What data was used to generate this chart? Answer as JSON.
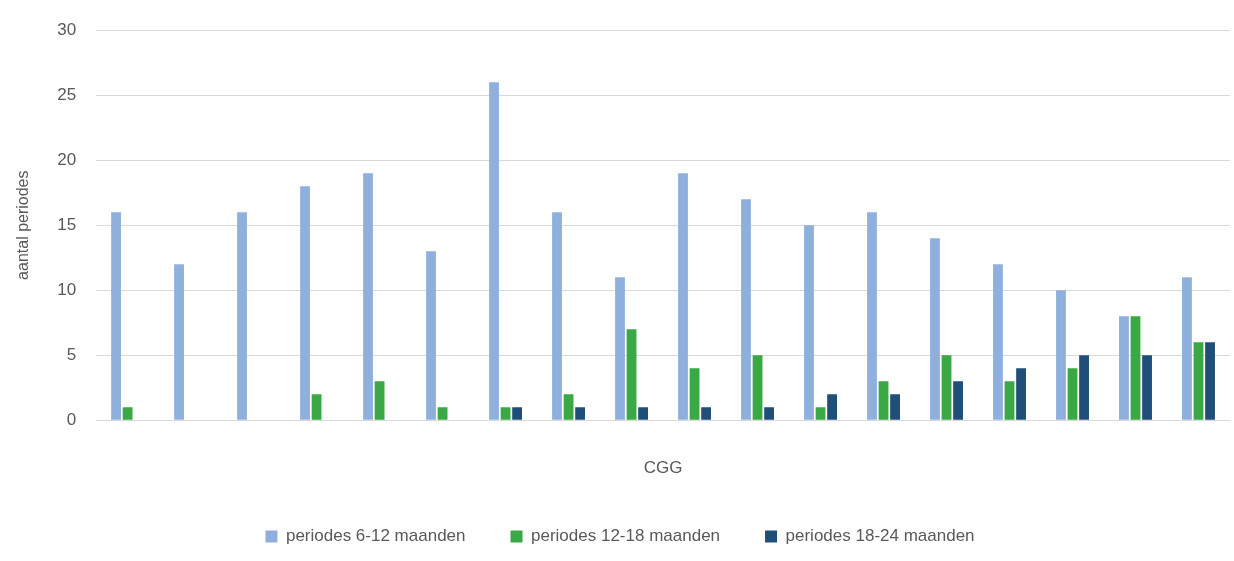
{
  "chart_data": {
    "type": "bar",
    "xlabel": "CGG",
    "ylabel": "aantal periodes",
    "categories": [
      null,
      null,
      null,
      null,
      null,
      null,
      null,
      null,
      null,
      null,
      null,
      null,
      null,
      null,
      null,
      null,
      null,
      null
    ],
    "series": [
      {
        "name": "periodes 6-12 maanden",
        "color": "#8fb0dc",
        "values": [
          16,
          12,
          16,
          18,
          19,
          13,
          26,
          16,
          11,
          19,
          17,
          15,
          16,
          14,
          12,
          10,
          8,
          11
        ]
      },
      {
        "name": "periodes 12-18 maanden",
        "color": "#3aa845",
        "values": [
          1,
          0,
          0,
          2,
          3,
          1,
          1,
          2,
          7,
          4,
          5,
          1,
          3,
          5,
          3,
          4,
          8,
          6
        ]
      },
      {
        "name": "periodes 18-24 maanden",
        "color": "#1f4e79",
        "values": [
          0,
          0,
          0,
          0,
          0,
          0,
          1,
          1,
          1,
          1,
          1,
          2,
          2,
          3,
          4,
          5,
          5,
          6
        ]
      }
    ],
    "ylim": [
      0,
      30
    ],
    "yticks": [
      0,
      5,
      10,
      15,
      20,
      25,
      30
    ],
    "grid": "y",
    "legend": "bottom"
  }
}
